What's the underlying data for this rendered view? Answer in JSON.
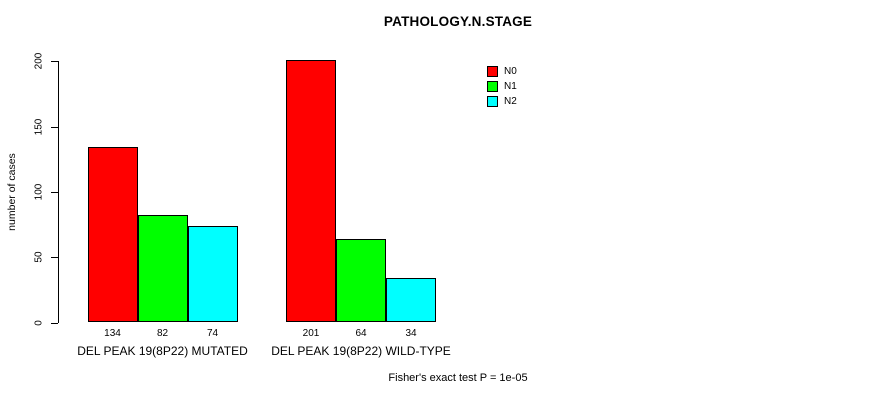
{
  "title": "PATHOLOGY.N.STAGE",
  "footnote": "Fisher's exact test P = 1e-05",
  "chart_data": {
    "type": "bar",
    "title": "PATHOLOGY.N.STAGE",
    "xlabel": "",
    "ylabel": "number of cases",
    "ylim": [
      0,
      200
    ],
    "yticks": [
      0,
      50,
      100,
      150,
      200
    ],
    "grid": false,
    "legend_position": "top-right",
    "categories": [
      "DEL PEAK 19(8P22) MUTATED",
      "DEL PEAK 19(8P22) WILD-TYPE"
    ],
    "series": [
      {
        "name": "N0",
        "color": "#ff0000",
        "values": [
          134,
          201
        ]
      },
      {
        "name": "N1",
        "color": "#00ff00",
        "values": [
          82,
          64
        ]
      },
      {
        "name": "N2",
        "color": "#00ffff",
        "values": [
          74,
          34
        ]
      }
    ],
    "bar_value_labels": [
      [
        134,
        82,
        74
      ],
      [
        201,
        64,
        34
      ]
    ],
    "annotation": "Fisher's exact test P = 1e-05"
  }
}
